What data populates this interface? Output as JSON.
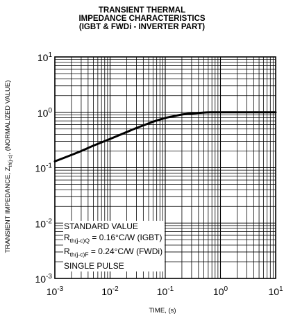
{
  "chart_data": {
    "type": "line",
    "title_lines": [
      "TRANSIENT THERMAL",
      "IMPEDANCE CHARACTERISTICS",
      "(IGBT & FWDi - INVERTER PART)"
    ],
    "xlabel": "TIME, (s)",
    "ylabel": {
      "prefix": "TRANSIENT IMPEDANCE, Z",
      "sub": "th(j-c)",
      "suffix": ", (NORMALIZED VALUE)"
    },
    "xscale": "log",
    "yscale": "log",
    "xlim": [
      0.001,
      10
    ],
    "ylim": [
      0.001,
      10
    ],
    "grid": true,
    "x_ticks": [
      {
        "base": "10",
        "exp": "-3",
        "value": 0.001
      },
      {
        "base": "10",
        "exp": "-2",
        "value": 0.01
      },
      {
        "base": "10",
        "exp": "-1",
        "value": 0.1
      },
      {
        "base": "10",
        "exp": "0",
        "value": 1
      },
      {
        "base": "10",
        "exp": "1",
        "value": 10
      }
    ],
    "y_ticks": [
      {
        "base": "10",
        "exp": "1",
        "value": 10
      },
      {
        "base": "10",
        "exp": "0",
        "value": 1
      },
      {
        "base": "10",
        "exp": "-1",
        "value": 0.1
      },
      {
        "base": "10",
        "exp": "-2",
        "value": 0.01
      },
      {
        "base": "10",
        "exp": "-3",
        "value": 0.001
      }
    ],
    "series": [
      {
        "x": [
          0.001,
          0.002,
          0.003,
          0.005,
          0.01,
          0.02,
          0.03,
          0.05,
          0.07,
          0.1,
          0.15,
          0.2,
          0.3,
          0.5,
          0.7,
          1,
          2,
          5,
          10
        ],
        "y": [
          0.13,
          0.17,
          0.2,
          0.25,
          0.33,
          0.44,
          0.52,
          0.63,
          0.71,
          0.79,
          0.86,
          0.91,
          0.95,
          0.99,
          1.0,
          1.0,
          1.0,
          1.0,
          1.0
        ]
      }
    ],
    "legend": {
      "line1": "STANDARD VALUE",
      "line2": {
        "r": "R",
        "sub": "th(j-c)Q",
        "text": " = 0.16°C/W (IGBT)"
      },
      "line3": {
        "r": "R",
        "sub": "th(j-c)F",
        "text": " = 0.24°C/W (FWDi)"
      },
      "line4": "SINGLE PULSE"
    }
  }
}
